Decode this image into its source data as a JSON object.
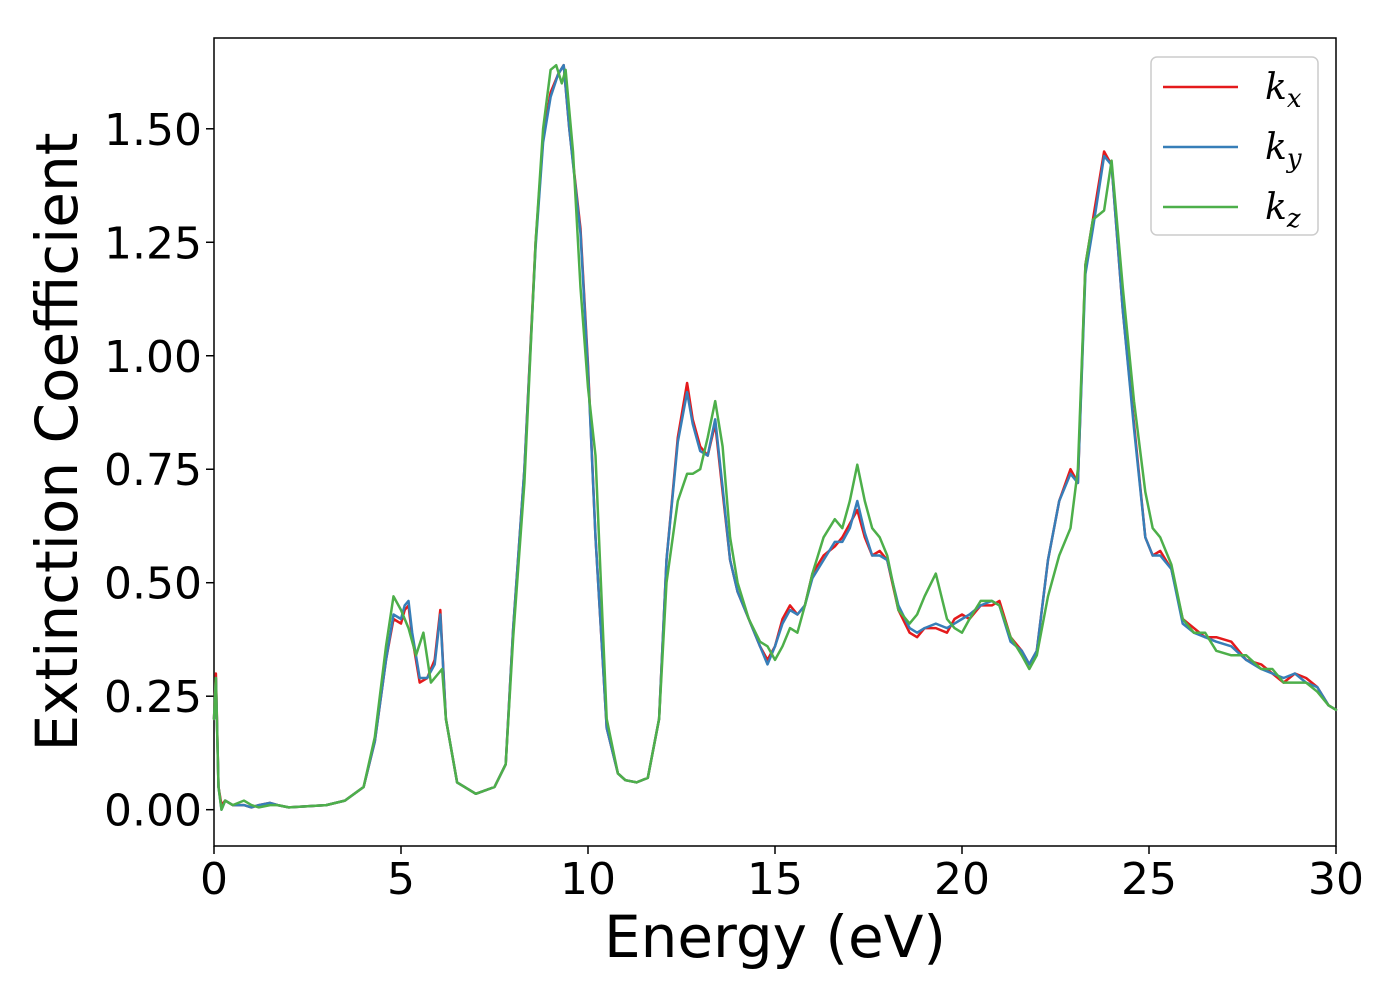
{
  "chart_data": {
    "type": "line",
    "xlabel": "Energy (eV)",
    "ylabel": "Extinction Coefficient",
    "xlim": [
      0,
      30
    ],
    "ylim": [
      -0.08,
      1.7
    ],
    "xticks": [
      0,
      5,
      10,
      15,
      20,
      25,
      30
    ],
    "xtick_labels": [
      "0",
      "5",
      "10",
      "15",
      "20",
      "25",
      "30"
    ],
    "yticks": [
      0.0,
      0.25,
      0.5,
      0.75,
      1.0,
      1.25,
      1.5
    ],
    "ytick_labels": [
      "0.00",
      "0.25",
      "0.50",
      "0.75",
      "1.00",
      "1.25",
      "1.50"
    ],
    "grid": false,
    "legend_position": "top-right",
    "series": [
      {
        "name": "k",
        "subscript": "x",
        "color": "#e41a1c",
        "x": [
          0,
          0.05,
          0.12,
          0.2,
          0.3,
          0.5,
          0.8,
          1.0,
          1.2,
          1.5,
          1.7,
          2,
          3,
          3.5,
          4,
          4.3,
          4.6,
          4.8,
          5.0,
          5.1,
          5.2,
          5.3,
          5.5,
          5.7,
          5.9,
          6.05,
          6.2,
          6.5,
          7,
          7.5,
          7.8,
          8.0,
          8.3,
          8.6,
          8.8,
          9.0,
          9.2,
          9.35,
          9.5,
          9.8,
          10.0,
          10.2,
          10.5,
          10.8,
          11,
          11.3,
          11.6,
          11.9,
          12.1,
          12.4,
          12.65,
          12.8,
          13.0,
          13.2,
          13.4,
          13.6,
          13.8,
          14.0,
          14.3,
          14.6,
          14.8,
          15.0,
          15.2,
          15.4,
          15.6,
          15.8,
          16.0,
          16.3,
          16.6,
          16.8,
          17.0,
          17.2,
          17.4,
          17.6,
          17.8,
          18.0,
          18.3,
          18.6,
          18.8,
          19.0,
          19.3,
          19.6,
          19.8,
          20.0,
          20.2,
          20.5,
          20.8,
          21.0,
          21.3,
          21.6,
          21.8,
          22.0,
          22.3,
          22.6,
          22.9,
          23.1,
          23.3,
          23.5,
          23.8,
          24.0,
          24.3,
          24.6,
          24.9,
          25.1,
          25.3,
          25.6,
          25.9,
          26.2,
          26.5,
          26.8,
          27.2,
          27.6,
          28.0,
          28.3,
          28.6,
          28.9,
          29.2,
          29.5,
          29.8,
          30.0
        ],
        "y": [
          0.2,
          0.3,
          0.05,
          0.01,
          0.02,
          0.01,
          0.01,
          0.005,
          0.01,
          0.015,
          0.01,
          0.005,
          0.01,
          0.02,
          0.05,
          0.15,
          0.33,
          0.42,
          0.41,
          0.44,
          0.45,
          0.38,
          0.28,
          0.29,
          0.33,
          0.44,
          0.2,
          0.06,
          0.035,
          0.05,
          0.1,
          0.4,
          0.75,
          1.25,
          1.48,
          1.58,
          1.62,
          1.64,
          1.5,
          1.28,
          0.98,
          0.6,
          0.18,
          0.08,
          0.065,
          0.06,
          0.07,
          0.2,
          0.55,
          0.82,
          0.94,
          0.86,
          0.8,
          0.78,
          0.85,
          0.7,
          0.55,
          0.48,
          0.42,
          0.36,
          0.33,
          0.36,
          0.42,
          0.45,
          0.43,
          0.45,
          0.52,
          0.56,
          0.58,
          0.6,
          0.63,
          0.66,
          0.6,
          0.56,
          0.57,
          0.55,
          0.44,
          0.39,
          0.38,
          0.4,
          0.4,
          0.39,
          0.42,
          0.43,
          0.42,
          0.45,
          0.45,
          0.46,
          0.38,
          0.35,
          0.32,
          0.35,
          0.55,
          0.68,
          0.75,
          0.72,
          1.2,
          1.3,
          1.45,
          1.42,
          1.1,
          0.85,
          0.6,
          0.56,
          0.57,
          0.53,
          0.42,
          0.4,
          0.38,
          0.38,
          0.37,
          0.33,
          0.32,
          0.3,
          0.28,
          0.3,
          0.29,
          0.27,
          0.23,
          0.22
        ]
      },
      {
        "name": "k",
        "subscript": "y",
        "color": "#377eb8",
        "x": [
          0,
          0.05,
          0.12,
          0.2,
          0.3,
          0.5,
          0.8,
          1.0,
          1.2,
          1.5,
          1.7,
          2,
          3,
          3.5,
          4,
          4.3,
          4.6,
          4.8,
          5.0,
          5.1,
          5.2,
          5.3,
          5.5,
          5.7,
          5.9,
          6.05,
          6.2,
          6.5,
          7,
          7.5,
          7.8,
          8.0,
          8.3,
          8.6,
          8.8,
          9.0,
          9.2,
          9.35,
          9.5,
          9.8,
          10.0,
          10.2,
          10.5,
          10.8,
          11,
          11.3,
          11.6,
          11.9,
          12.1,
          12.4,
          12.65,
          12.8,
          13.0,
          13.2,
          13.4,
          13.6,
          13.8,
          14.0,
          14.3,
          14.6,
          14.8,
          15.0,
          15.2,
          15.4,
          15.6,
          15.8,
          16.0,
          16.3,
          16.6,
          16.8,
          17.0,
          17.2,
          17.4,
          17.6,
          17.8,
          18.0,
          18.3,
          18.6,
          18.8,
          19.0,
          19.3,
          19.6,
          19.8,
          20.0,
          20.2,
          20.5,
          20.8,
          21.0,
          21.3,
          21.6,
          21.8,
          22.0,
          22.3,
          22.6,
          22.9,
          23.1,
          23.3,
          23.5,
          23.8,
          24.0,
          24.3,
          24.6,
          24.9,
          25.1,
          25.3,
          25.6,
          25.9,
          26.2,
          26.5,
          26.8,
          27.2,
          27.6,
          28.0,
          28.3,
          28.6,
          28.9,
          29.2,
          29.5,
          29.8,
          30.0
        ],
        "y": [
          0.2,
          0.29,
          0.05,
          0.0,
          0.02,
          0.01,
          0.01,
          0.005,
          0.01,
          0.015,
          0.01,
          0.005,
          0.01,
          0.02,
          0.05,
          0.15,
          0.33,
          0.43,
          0.42,
          0.45,
          0.46,
          0.39,
          0.29,
          0.29,
          0.32,
          0.43,
          0.2,
          0.06,
          0.035,
          0.05,
          0.1,
          0.4,
          0.75,
          1.24,
          1.47,
          1.57,
          1.62,
          1.64,
          1.5,
          1.27,
          0.97,
          0.6,
          0.18,
          0.08,
          0.065,
          0.06,
          0.07,
          0.2,
          0.55,
          0.81,
          0.92,
          0.85,
          0.79,
          0.78,
          0.86,
          0.71,
          0.55,
          0.48,
          0.42,
          0.36,
          0.32,
          0.36,
          0.41,
          0.44,
          0.43,
          0.45,
          0.51,
          0.55,
          0.59,
          0.59,
          0.62,
          0.68,
          0.61,
          0.56,
          0.56,
          0.55,
          0.45,
          0.4,
          0.39,
          0.4,
          0.41,
          0.4,
          0.41,
          0.42,
          0.43,
          0.45,
          0.46,
          0.45,
          0.37,
          0.35,
          0.32,
          0.35,
          0.55,
          0.68,
          0.74,
          0.72,
          1.18,
          1.28,
          1.44,
          1.42,
          1.1,
          0.84,
          0.6,
          0.56,
          0.56,
          0.53,
          0.41,
          0.39,
          0.38,
          0.37,
          0.36,
          0.33,
          0.31,
          0.3,
          0.29,
          0.3,
          0.28,
          0.27,
          0.23,
          0.22
        ]
      },
      {
        "name": "k",
        "subscript": "z",
        "color": "#4daf4a",
        "x": [
          0,
          0.05,
          0.12,
          0.2,
          0.3,
          0.5,
          0.8,
          1.0,
          1.2,
          1.5,
          1.7,
          2,
          3,
          3.5,
          4,
          4.3,
          4.6,
          4.8,
          5.0,
          5.2,
          5.4,
          5.6,
          5.8,
          6.0,
          6.1,
          6.2,
          6.5,
          7,
          7.5,
          7.8,
          8.0,
          8.3,
          8.6,
          8.8,
          9.0,
          9.15,
          9.3,
          9.4,
          9.6,
          9.8,
          10.0,
          10.2,
          10.5,
          10.8,
          11,
          11.3,
          11.6,
          11.9,
          12.1,
          12.4,
          12.65,
          12.8,
          13.0,
          13.2,
          13.4,
          13.6,
          13.8,
          14.0,
          14.3,
          14.6,
          14.8,
          15.0,
          15.2,
          15.4,
          15.6,
          15.8,
          16.0,
          16.3,
          16.6,
          16.8,
          17.0,
          17.2,
          17.4,
          17.6,
          17.8,
          18.0,
          18.3,
          18.6,
          18.8,
          19.0,
          19.3,
          19.6,
          19.8,
          20.0,
          20.2,
          20.5,
          20.8,
          21.0,
          21.3,
          21.6,
          21.8,
          22.0,
          22.3,
          22.6,
          22.9,
          23.1,
          23.3,
          23.5,
          23.8,
          24.0,
          24.3,
          24.6,
          24.9,
          25.1,
          25.3,
          25.6,
          25.9,
          26.2,
          26.5,
          26.8,
          27.2,
          27.6,
          28.0,
          28.3,
          28.6,
          28.9,
          29.2,
          29.5,
          29.8,
          30.0
        ],
        "y": [
          0.2,
          0.29,
          0.05,
          0.0,
          0.02,
          0.01,
          0.02,
          0.01,
          0.005,
          0.01,
          0.01,
          0.005,
          0.01,
          0.02,
          0.05,
          0.16,
          0.36,
          0.47,
          0.44,
          0.4,
          0.34,
          0.39,
          0.28,
          0.3,
          0.31,
          0.2,
          0.06,
          0.035,
          0.05,
          0.1,
          0.38,
          0.72,
          1.25,
          1.5,
          1.63,
          1.64,
          1.6,
          1.63,
          1.45,
          1.15,
          0.93,
          0.78,
          0.2,
          0.08,
          0.065,
          0.06,
          0.07,
          0.2,
          0.5,
          0.68,
          0.74,
          0.74,
          0.75,
          0.82,
          0.9,
          0.8,
          0.6,
          0.5,
          0.42,
          0.37,
          0.36,
          0.33,
          0.36,
          0.4,
          0.39,
          0.45,
          0.52,
          0.6,
          0.64,
          0.62,
          0.68,
          0.76,
          0.68,
          0.62,
          0.6,
          0.56,
          0.44,
          0.41,
          0.43,
          0.47,
          0.52,
          0.42,
          0.4,
          0.39,
          0.42,
          0.46,
          0.46,
          0.45,
          0.38,
          0.34,
          0.31,
          0.34,
          0.47,
          0.56,
          0.62,
          0.75,
          1.2,
          1.3,
          1.32,
          1.43,
          1.15,
          0.9,
          0.7,
          0.62,
          0.6,
          0.54,
          0.42,
          0.39,
          0.39,
          0.35,
          0.34,
          0.34,
          0.31,
          0.31,
          0.28,
          0.28,
          0.28,
          0.26,
          0.23,
          0.22
        ]
      }
    ]
  }
}
